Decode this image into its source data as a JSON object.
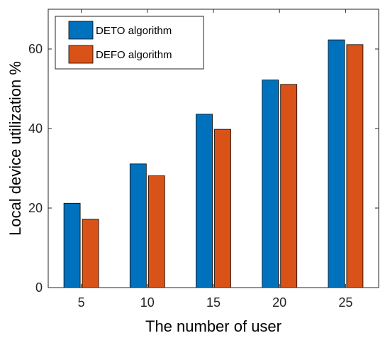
{
  "chart_data": {
    "type": "bar",
    "title": "",
    "xlabel": "The number of user",
    "ylabel": "Local device utilization %",
    "categories": [
      "5",
      "10",
      "15",
      "20",
      "25"
    ],
    "ylim": [
      0,
      70
    ],
    "yticks": [
      "0",
      "20",
      "40",
      "60"
    ],
    "grid": false,
    "legend_position": "top-left",
    "series": [
      {
        "name": "DETO algorithm",
        "values": [
          21.2,
          31.1,
          43.6,
          52.2,
          62.3
        ],
        "color": "#0072BD"
      },
      {
        "name": "DEFO algorithm",
        "values": [
          17.2,
          28.1,
          39.8,
          51.1,
          61.1
        ],
        "color": "#D95319"
      }
    ]
  }
}
